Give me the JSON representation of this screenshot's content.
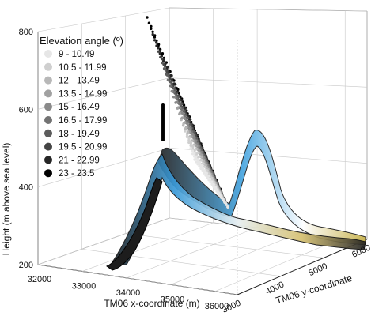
{
  "chart_data": {
    "type": "scatter",
    "subtype": "3d-surface-with-points",
    "title": "",
    "xlabel": "TM06 x-coordinate (m)",
    "ylabel": "TM06 y-coordinate",
    "zlabel": "Height (m above sea level)",
    "x_ticks": [
      "32000",
      "33000",
      "34000",
      "35000",
      "36000"
    ],
    "y_ticks": [
      "3000",
      "4000",
      "5000",
      "6000"
    ],
    "z_ticks": [
      "200",
      "400",
      "600",
      "800"
    ],
    "xlim": [
      32000,
      36500
    ],
    "ylim": [
      3000,
      6000
    ],
    "zlim": [
      200,
      800
    ],
    "legend": {
      "title": "Elevation angle (º)",
      "placement": "top-left",
      "entries": [
        {
          "label": "9 - 10.49",
          "color": "#e6e6e6"
        },
        {
          "label": "10.5 - 11.99",
          "color": "#cfcfcf"
        },
        {
          "label": "12 - 13.49",
          "color": "#b8b8b8"
        },
        {
          "label": "13.5 - 14.99",
          "color": "#a1a1a1"
        },
        {
          "label": "15 - 16.49",
          "color": "#8a8a8a"
        },
        {
          "label": "16.5 - 17.99",
          "color": "#737373"
        },
        {
          "label": "18 - 19.49",
          "color": "#5c5c5c"
        },
        {
          "label": "19.5 - 20.99",
          "color": "#454545"
        },
        {
          "label": "21 - 22.99",
          "color": "#262626"
        },
        {
          "label": "23 - 23.5",
          "color": "#000000"
        }
      ]
    },
    "terrain_colors": [
      "#1a1a1a",
      "#2f8fd0",
      "#8fd0f0",
      "#e8e8e0",
      "#c9b24a"
    ],
    "grid": true
  }
}
